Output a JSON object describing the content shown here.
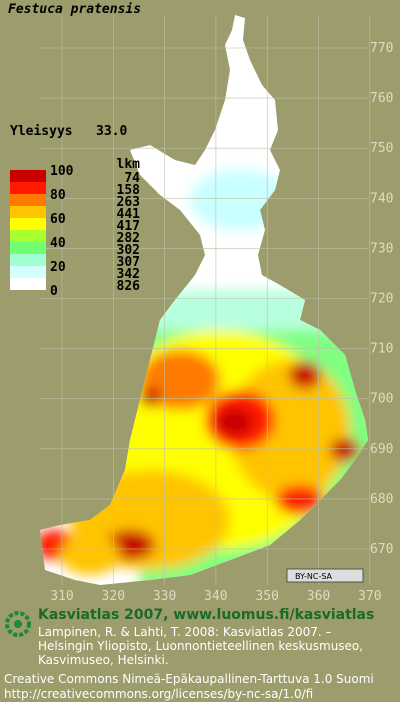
{
  "title": "Festuca pratensis",
  "frequency": {
    "label": "Yleisyys",
    "value": "33.0"
  },
  "legend": {
    "count_header": "lkm",
    "scale_labels": [
      "100",
      "80",
      "60",
      "40",
      "20",
      "0"
    ],
    "classes": [
      {
        "color": "#c80000",
        "count": "74"
      },
      {
        "color": "#ff1a00",
        "count": "158"
      },
      {
        "color": "#ff7a00",
        "count": "263"
      },
      {
        "color": "#ffc400",
        "count": "441"
      },
      {
        "color": "#ffff00",
        "count": "417"
      },
      {
        "color": "#a8ff30",
        "count": "282"
      },
      {
        "color": "#70ff70",
        "count": "302"
      },
      {
        "color": "#a0ffd0",
        "count": "307"
      },
      {
        "color": "#d4ffff",
        "count": "342"
      },
      {
        "color": "#ffffff",
        "count": "826"
      }
    ]
  },
  "grid": {
    "northing": [
      "770",
      "760",
      "750",
      "740",
      "730",
      "720",
      "710",
      "700",
      "690",
      "680",
      "670"
    ],
    "easting": [
      "310",
      "320",
      "330",
      "340",
      "350",
      "360",
      "370"
    ]
  },
  "license_badge": "BY-NC-SA",
  "footer": {
    "title": "Kasviatlas 2007, www.luomus.fi/kasviatlas",
    "citation": [
      "Lampinen, R. & Lahti, T. 2008: Kasviatlas 2007. –",
      "Helsingin Yliopisto, Luonnontieteellinen keskusmuseo,",
      "Kasvimuseo, Helsinki."
    ],
    "license": [
      "Creative Commons Nimeä-Epäkaupallinen-Tarttuva 1.0 Suomi",
      "http://creativecommons.org/licenses/by-nc-sa/1.0/fi"
    ]
  }
}
